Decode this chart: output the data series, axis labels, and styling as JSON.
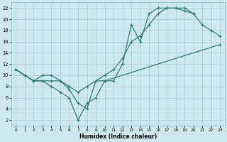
{
  "xlabel": "Humidex (Indice chaleur)",
  "bg_color": "#cde8ee",
  "grid_color": "#aacdd6",
  "line_color": "#2e7d7d",
  "xlim": [
    -0.5,
    23.5
  ],
  "ylim": [
    1,
    23
  ],
  "xticks": [
    0,
    1,
    2,
    3,
    4,
    5,
    6,
    7,
    8,
    9,
    10,
    11,
    12,
    13,
    14,
    15,
    16,
    17,
    18,
    19,
    20,
    21,
    22,
    23
  ],
  "yticks": [
    2,
    4,
    6,
    8,
    10,
    12,
    14,
    16,
    18,
    20,
    22
  ],
  "line1": {
    "x": [
      0,
      1,
      2,
      3,
      4,
      5,
      6,
      7,
      8,
      9,
      10,
      11,
      12,
      13,
      14,
      15,
      16,
      17,
      18,
      19,
      20,
      21,
      22,
      23
    ],
    "y": [
      11,
      10,
      9,
      10,
      10,
      9,
      8,
      7,
      8,
      9,
      10,
      11,
      13,
      16,
      17,
      19,
      21,
      22,
      22,
      22,
      21,
      19,
      18,
      17
    ]
  },
  "line2": {
    "x": [
      0,
      1,
      2,
      3,
      4,
      5,
      6,
      7,
      8,
      9,
      10,
      11,
      12,
      13,
      14,
      15,
      16,
      17,
      18,
      19,
      20
    ],
    "y": [
      11,
      10,
      9,
      9,
      8,
      7,
      6,
      2,
      5,
      6,
      9,
      9,
      12,
      19,
      16,
      21,
      22,
      22,
      22,
      21.5,
      21
    ]
  },
  "line3": {
    "x": [
      0,
      1,
      2,
      3,
      4,
      5,
      6,
      7,
      8,
      9,
      10,
      23
    ],
    "y": [
      11,
      10,
      9,
      9,
      9,
      9,
      7.5,
      5,
      4,
      9,
      9,
      15.5
    ]
  }
}
